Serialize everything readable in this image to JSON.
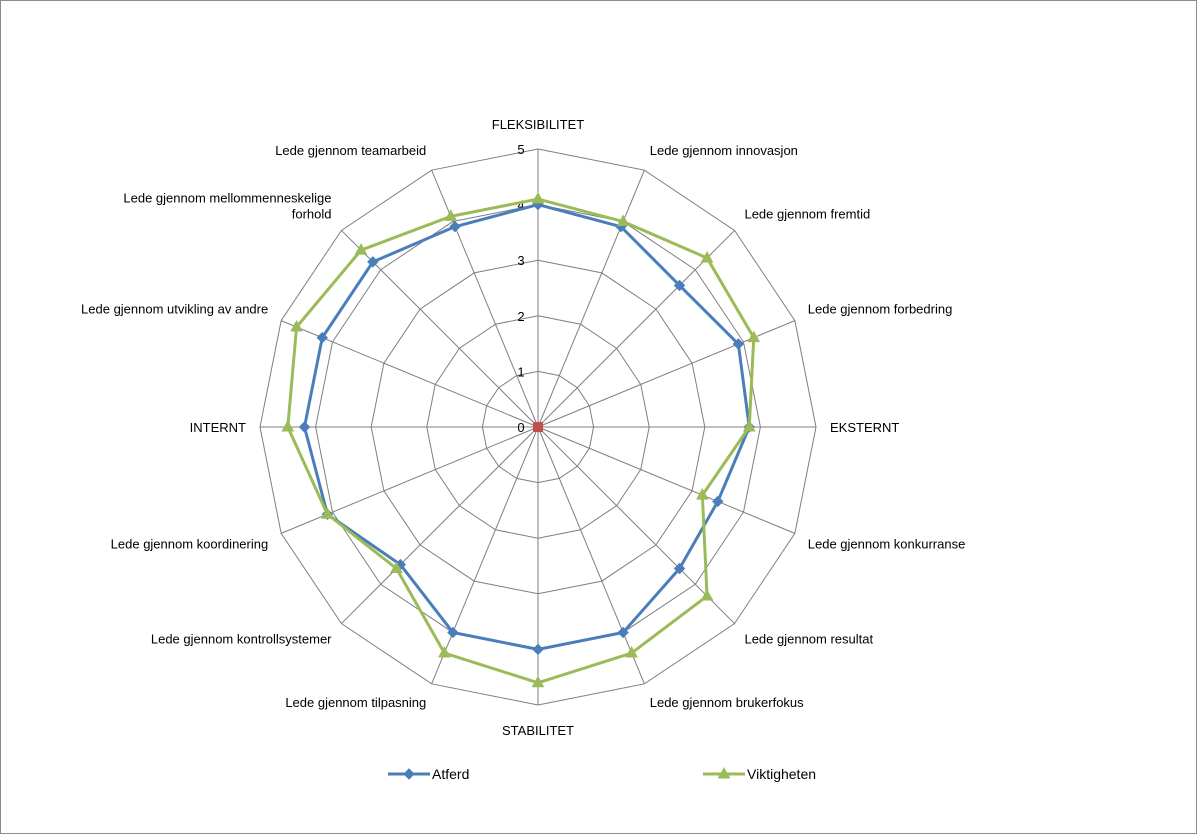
{
  "chart_data": {
    "type": "radar",
    "categories": [
      "FLEKSIBILITET",
      "Lede gjennom innovasjon",
      "Lede gjennom fremtid",
      "Lede gjennom forbedring",
      "EKSTERNT",
      "Lede gjennom konkurranse",
      "Lede gjennom resultat",
      "Lede gjennom brukerfokus",
      "STABILITET",
      "Lede gjennom tilpasning",
      "Lede gjennom kontrollsystemer",
      "Lede gjennom koordinering",
      "INTERNT",
      "Lede gjennom utvikling av andre",
      "Lede gjennom mellommenneskelige forhold",
      "Lede gjennom teamarbeid"
    ],
    "category_lines": [
      [
        "FLEKSIBILITET"
      ],
      [
        "Lede gjennom innovasjon"
      ],
      [
        "Lede gjennom fremtid"
      ],
      [
        "Lede gjennom forbedring"
      ],
      [
        "EKSTERNT"
      ],
      [
        "Lede gjennom konkurranse"
      ],
      [
        "Lede gjennom resultat"
      ],
      [
        "Lede gjennom brukerfokus"
      ],
      [
        "STABILITET"
      ],
      [
        "Lede gjennom tilpasning"
      ],
      [
        "Lede gjennom kontrollsystemer"
      ],
      [
        "Lede gjennom koordinering"
      ],
      [
        "INTERNT"
      ],
      [
        "Lede gjennom utvikling av andre"
      ],
      [
        "Lede gjennom mellommenneskelige",
        "forhold"
      ],
      [
        "Lede gjennom teamarbeid"
      ]
    ],
    "ticks": [
      "0",
      "1",
      "2",
      "3",
      "4",
      "5"
    ],
    "rlim": [
      0,
      5
    ],
    "series": [
      {
        "name": "Atferd",
        "color": "#4a7ebb",
        "marker": "diamond",
        "values": [
          4.0,
          3.9,
          3.6,
          3.9,
          3.8,
          3.5,
          3.6,
          4.0,
          4.0,
          4.0,
          3.5,
          4.1,
          4.2,
          4.2,
          4.2,
          3.9
        ]
      },
      {
        "name": "Viktigheten",
        "color": "#9bbb59",
        "marker": "triangle",
        "values": [
          4.1,
          4.0,
          4.3,
          4.2,
          3.8,
          3.2,
          4.3,
          4.4,
          4.6,
          4.4,
          3.6,
          4.1,
          4.5,
          4.7,
          4.5,
          4.1
        ]
      }
    ],
    "center_marker_color": "#c0504d",
    "grid": true,
    "grid_color": "#7f7f7f",
    "legend_position": "bottom"
  }
}
